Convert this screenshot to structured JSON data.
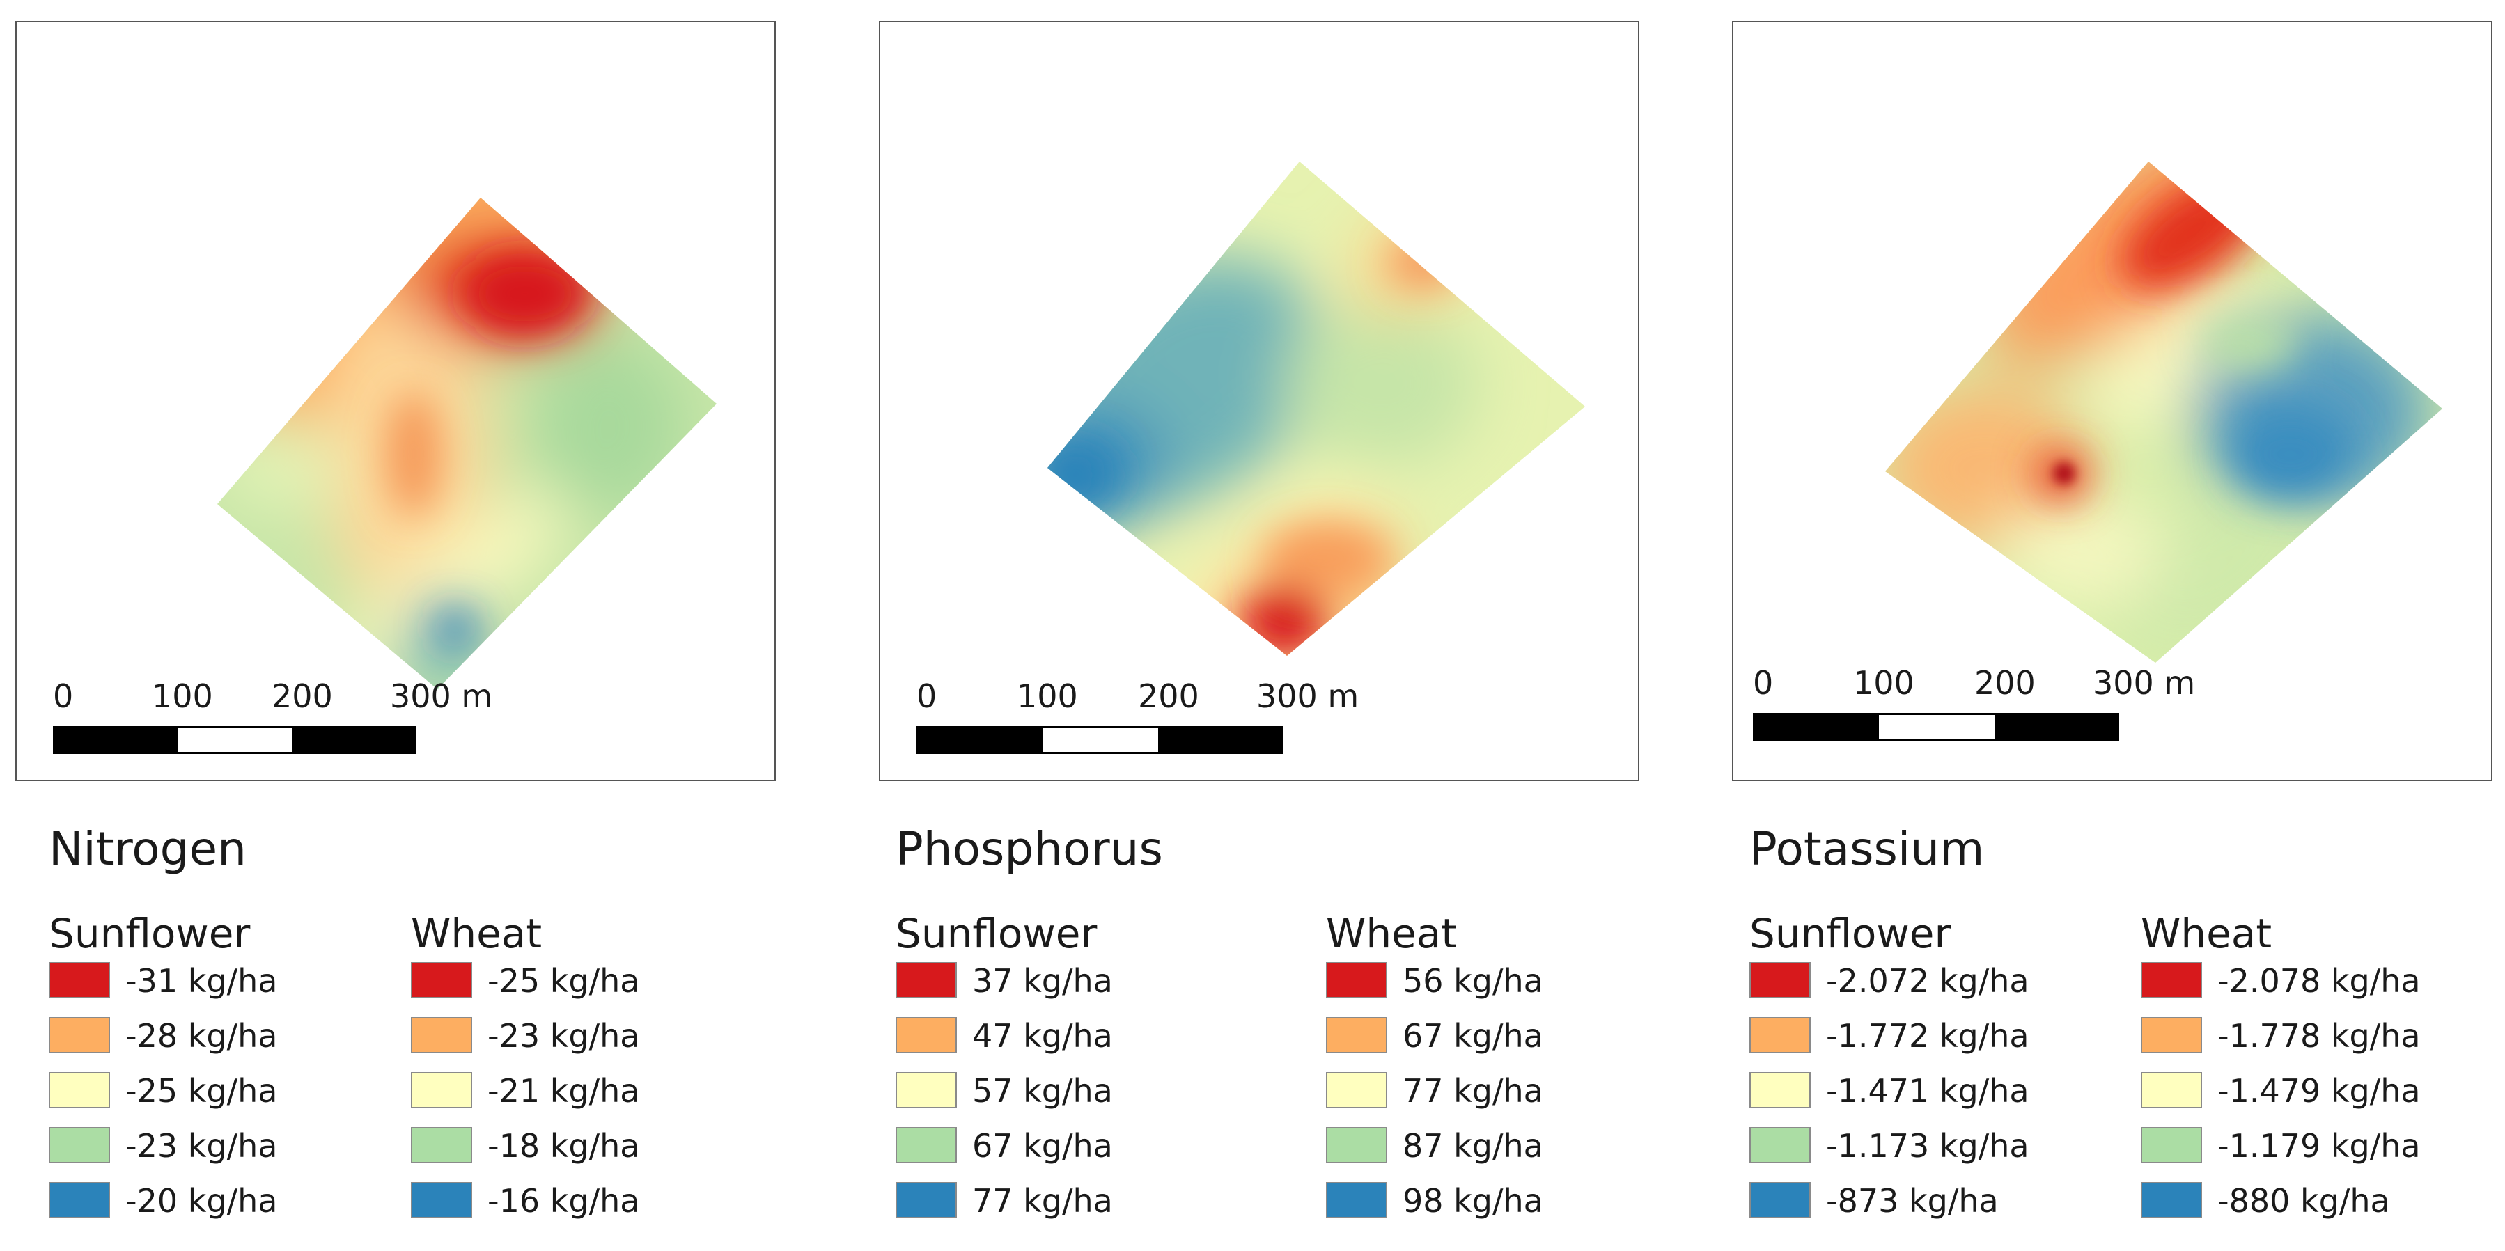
{
  "scale_bar": {
    "labels": [
      "0",
      "100",
      "200",
      "300 m"
    ]
  },
  "legend_colors": [
    "#d7191c",
    "#fdae61",
    "#ffffbf",
    "#abdda4",
    "#2b83ba"
  ],
  "panels": [
    {
      "title": "Nitrogen",
      "sunflower": {
        "label": "Sunflower",
        "items": [
          "-31 kg/ha",
          "-28 kg/ha",
          "-25 kg/ha",
          "-23 kg/ha",
          "-20 kg/ha"
        ]
      },
      "wheat": {
        "label": "Wheat",
        "items": [
          "-25 kg/ha",
          "-23 kg/ha",
          "-21 kg/ha",
          "-18 kg/ha",
          "-16 kg/ha"
        ]
      }
    },
    {
      "title": "Phosphorus",
      "sunflower": {
        "label": "Sunflower",
        "items": [
          "37 kg/ha",
          "47 kg/ha",
          "57 kg/ha",
          "67 kg/ha",
          "77 kg/ha"
        ]
      },
      "wheat": {
        "label": "Wheat",
        "items": [
          "56 kg/ha",
          "67 kg/ha",
          "77 kg/ha",
          "87 kg/ha",
          "98 kg/ha"
        ]
      }
    },
    {
      "title": "Potassium",
      "sunflower": {
        "label": "Sunflower",
        "items": [
          "-2.072 kg/ha",
          "-1.772 kg/ha",
          "-1.471 kg/ha",
          "-1.173 kg/ha",
          "-873 kg/ha"
        ]
      },
      "wheat": {
        "label": "Wheat",
        "items": [
          "-2.078 kg/ha",
          "-1.778 kg/ha",
          "-1.479 kg/ha",
          "-1.179 kg/ha",
          "-880 kg/ha"
        ]
      }
    }
  ]
}
